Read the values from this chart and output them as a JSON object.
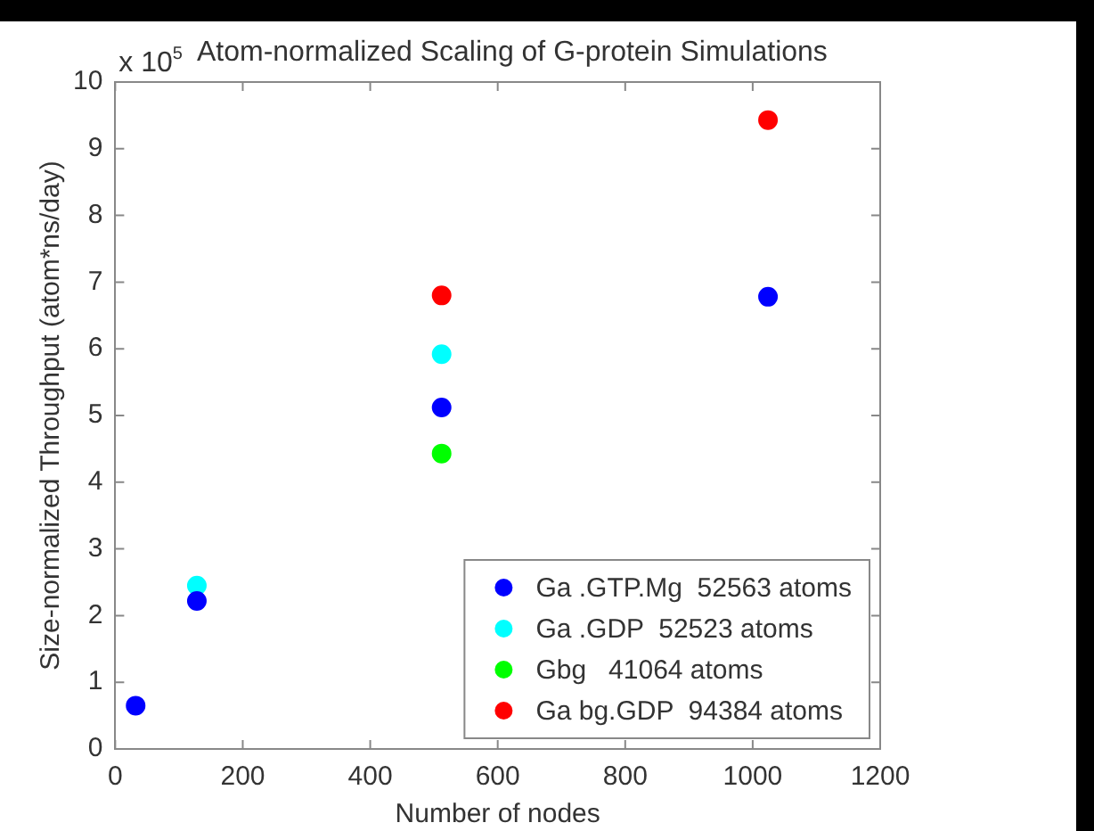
{
  "chart_data": {
    "type": "scatter",
    "title": "Atom-normalized Scaling of G-protein Simulations",
    "xlabel": "Number of nodes",
    "ylabel": "Size-normalized Throughput (atom*ns/day)",
    "annotations": [
      "x 10$^{5}$"
    ],
    "series": [
      {
        "name": "Ga .GTP.Mg  52563 atoms",
        "color": "#0000ff",
        "x": [
          32,
          128,
          512,
          1024
        ],
        "values": [
          0.65,
          2.22,
          5.12,
          6.78
        ]
      },
      {
        "name": "Ga .GDP  52523 atoms",
        "color": "#00ffff",
        "x": [
          128,
          512
        ],
        "values": [
          2.45,
          5.92
        ]
      },
      {
        "name": "Gbg   41064 atoms",
        "color": "#00ff00",
        "x": [
          512
        ],
        "values": [
          4.43
        ]
      },
      {
        "name": "Ga bg.GDP  94384 atoms",
        "color": "#ff0000",
        "x": [
          512,
          1024
        ],
        "values": [
          6.8,
          9.43
        ]
      }
    ],
    "xlim": [
      0,
      1200
    ],
    "xticks": [
      0,
      200,
      400,
      600,
      800,
      1000,
      1200
    ],
    "ylim": [
      0,
      10
    ],
    "yticks": [
      0,
      1,
      2,
      3,
      4,
      5,
      6,
      7,
      8,
      9,
      10
    ],
    "grid": false,
    "legend": "bottom right",
    "marker": "circle"
  }
}
